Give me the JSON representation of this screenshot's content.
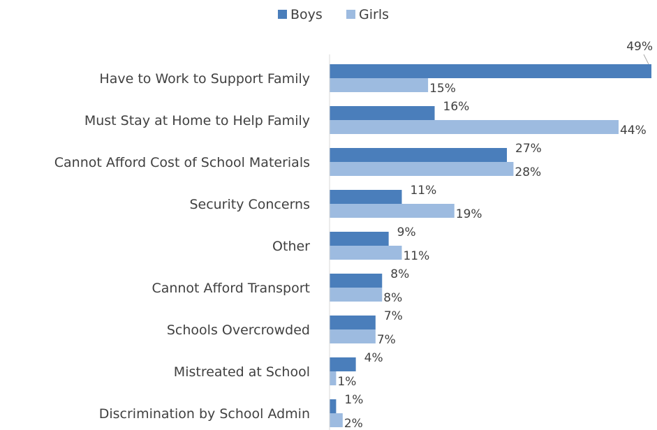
{
  "chart_data": {
    "type": "bar",
    "orientation": "horizontal",
    "categories": [
      "Have to Work to Support Family",
      "Must Stay at Home to Help Family",
      "Cannot Afford Cost of School Materials",
      "Security Concerns",
      "Other",
      "Cannot Afford Transport",
      "Schools Overcrowded",
      "Mistreated at School",
      "Discrimination by School Admin"
    ],
    "series": [
      {
        "name": "Boys",
        "color": "#4a7ebb",
        "values": [
          49,
          16,
          27,
          11,
          9,
          8,
          7,
          4,
          1
        ],
        "labels": [
          "49%",
          "16%",
          "27%",
          "11%",
          "9%",
          "8%",
          "7%",
          "4%",
          "1%"
        ]
      },
      {
        "name": "Girls",
        "color": "#9dbbe0",
        "values": [
          15,
          44,
          28,
          19,
          11,
          8,
          7,
          1,
          2
        ],
        "labels": [
          "15%",
          "44%",
          "28%",
          "19%",
          "11%",
          "8%",
          "7%",
          "1%",
          "2%"
        ]
      }
    ],
    "xlim": [
      0,
      49
    ],
    "legend_position": "top",
    "grid": false
  }
}
